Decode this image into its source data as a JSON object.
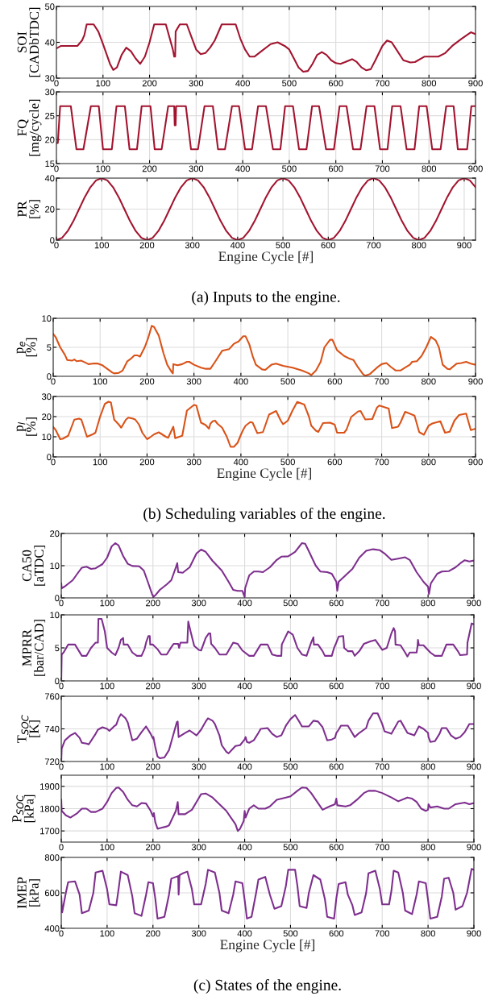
{
  "chart_data": [
    {
      "type": "line",
      "ylabel": "SOI\n[CADbTDC]",
      "xlim": [
        0,
        900
      ],
      "ylim": [
        30,
        50
      ],
      "xticks": [
        0,
        100,
        200,
        300,
        400,
        500,
        600,
        700,
        800,
        900
      ],
      "yticks": [
        30,
        40,
        50
      ],
      "grid": true,
      "x": [
        0,
        10,
        30,
        45,
        55,
        60,
        65,
        80,
        90,
        100,
        115,
        122,
        130,
        140,
        150,
        160,
        170,
        180,
        190,
        200,
        210,
        235,
        250,
        253,
        255,
        256,
        265,
        280,
        290,
        300,
        310,
        320,
        330,
        340,
        355,
        385,
        395,
        405,
        415,
        425,
        440,
        460,
        475,
        490,
        500,
        510,
        520,
        530,
        540,
        550,
        560,
        570,
        580,
        590,
        600,
        610,
        620,
        635,
        645,
        655,
        665,
        675,
        685,
        700,
        710,
        720,
        730,
        745,
        760,
        770,
        790,
        820,
        835,
        850,
        870,
        890,
        900
      ],
      "series": [
        {
          "color": "#a2142f",
          "values": [
            38.3,
            39,
            39,
            39,
            40.5,
            42,
            45,
            45,
            43,
            39.5,
            34,
            32.3,
            33,
            36.5,
            38.5,
            37.5,
            35.5,
            34,
            36,
            40,
            45,
            45,
            38,
            36,
            36,
            43,
            45,
            45,
            41.5,
            38,
            36.7,
            37,
            38.5,
            40.5,
            45,
            45,
            41,
            38,
            36,
            36,
            37.5,
            39.5,
            40,
            39,
            38,
            35.5,
            33,
            31.8,
            32,
            34,
            36.5,
            37.3,
            36.5,
            35,
            34.2,
            34,
            34.5,
            35.3,
            34.5,
            33,
            32.2,
            32.5,
            35,
            39,
            40.5,
            40,
            38,
            35,
            34.4,
            34.5,
            36,
            36,
            37,
            39,
            41,
            42.8,
            42.3
          ]
        }
      ]
    },
    {
      "type": "line",
      "ylabel": "FQ\n[mg/cycle]",
      "xlim": [
        0,
        900
      ],
      "ylim": [
        15,
        30
      ],
      "xticks": [
        0,
        100,
        200,
        300,
        400,
        500,
        600,
        700,
        800,
        900
      ],
      "yticks": [
        15,
        20,
        25,
        30
      ],
      "grid": true,
      "x": [
        0,
        3,
        8,
        31,
        43,
        58,
        74,
        91,
        100,
        119,
        129,
        147,
        157,
        173,
        183,
        202,
        211,
        226,
        240,
        253,
        254,
        256,
        257,
        261,
        278,
        289,
        304,
        318,
        336,
        347,
        362,
        377,
        392,
        405,
        420,
        433,
        450,
        465,
        481,
        491,
        508,
        521,
        537,
        549,
        564,
        579,
        596,
        608,
        623,
        637,
        653,
        666,
        683,
        695,
        711,
        721,
        739,
        752,
        769,
        779,
        795,
        807,
        825,
        837,
        853,
        862,
        882,
        891,
        900
      ],
      "series": [
        {
          "color": "#a2142f",
          "values": [
            19.3,
            19.3,
            27,
            27,
            18,
            18,
            27,
            27,
            18,
            18,
            27,
            27,
            18,
            18,
            27,
            27,
            18,
            18,
            27,
            27,
            23,
            23,
            27,
            27,
            27,
            18,
            18,
            27,
            27,
            18,
            18,
            27,
            27,
            18,
            18,
            27,
            27,
            18,
            18,
            27,
            27,
            18,
            18,
            27,
            27,
            18,
            18,
            27,
            27,
            18,
            18,
            27,
            27,
            18,
            18,
            27,
            27,
            18,
            18,
            27,
            27,
            18,
            18,
            27,
            27,
            18,
            18,
            27,
            27
          ]
        }
      ]
    },
    {
      "type": "line",
      "ylabel": "PR\n[%]",
      "xlabel": "Engine Cycle [#]",
      "annotations": [
        "(a) Inputs to the engine."
      ],
      "xlim": [
        0,
        925
      ],
      "ylim": [
        0,
        40
      ],
      "xticks": [
        0,
        100,
        200,
        300,
        400,
        500,
        600,
        700,
        800,
        900
      ],
      "yticks": [
        0,
        20,
        40
      ],
      "grid": true,
      "x": [
        0,
        12.5,
        25,
        37.5,
        50,
        62.5,
        75,
        87.5,
        100,
        112.5,
        125,
        137.5,
        150,
        162.5,
        175,
        187.5,
        200,
        212.5,
        225,
        237.5,
        250,
        262.5,
        275,
        287.5,
        300,
        312.5,
        325,
        337.5,
        350,
        362.5,
        375,
        387.5,
        400,
        412.5,
        425,
        437.5,
        450,
        462.5,
        475,
        487.5,
        500,
        512.5,
        525,
        537.5,
        550,
        562.5,
        575,
        587.5,
        600,
        612.5,
        625,
        637.5,
        650,
        662.5,
        675,
        687.5,
        700,
        712.5,
        725,
        737.5,
        750,
        762.5,
        775,
        787.5,
        800,
        812.5,
        825,
        837.5,
        850,
        862.5,
        875,
        887.5,
        900,
        912.5,
        925
      ],
      "series": [
        {
          "color": "#a2142f",
          "values": [
            0,
            1.5,
            5.9,
            12.3,
            20,
            27.7,
            34.1,
            38.5,
            40,
            38.5,
            34.1,
            27.7,
            20,
            12.3,
            5.9,
            1.5,
            0,
            1.5,
            5.9,
            12.3,
            20,
            27.7,
            34.1,
            38.5,
            40,
            38.5,
            34.1,
            27.7,
            20,
            12.3,
            5.9,
            1.5,
            0,
            1.5,
            5.9,
            12.3,
            20,
            27.7,
            34.1,
            38.5,
            40,
            38.5,
            34.1,
            27.7,
            20,
            12.3,
            5.9,
            1.5,
            0,
            1.5,
            5.9,
            12.3,
            20,
            27.7,
            34.1,
            38.5,
            40,
            38.5,
            34.1,
            27.7,
            20,
            12.3,
            5.9,
            1.5,
            0,
            1.5,
            5.9,
            12.3,
            20,
            27.7,
            34.1,
            38.5,
            40,
            38.5,
            34.1
          ]
        }
      ]
    },
    {
      "type": "line",
      "ylabel": "p$_{e}$\n[%]",
      "xlim": [
        0,
        900
      ],
      "ylim": [
        0,
        10
      ],
      "xticks": [
        0,
        100,
        200,
        300,
        400,
        500,
        600,
        700,
        800,
        900
      ],
      "yticks": [
        0,
        5,
        10
      ],
      "grid": true,
      "x": [
        0,
        5,
        15,
        25,
        30,
        40,
        45,
        50,
        60,
        70,
        75,
        85,
        95,
        105,
        115,
        125,
        130,
        140,
        148,
        158,
        165,
        173,
        180,
        185,
        195,
        202,
        210,
        215,
        225,
        235,
        243,
        252,
        255,
        256,
        265,
        275,
        285,
        290,
        300,
        315,
        325,
        335,
        345,
        360,
        375,
        385,
        395,
        405,
        410,
        418,
        425,
        432,
        445,
        452,
        465,
        475,
        490,
        510,
        530,
        545,
        550,
        560,
        570,
        578,
        590,
        595,
        605,
        620,
        630,
        640,
        650,
        660,
        665,
        675,
        690,
        700,
        710,
        720,
        730,
        740,
        750,
        760,
        765,
        775,
        785,
        795,
        805,
        815,
        822,
        830,
        840,
        845,
        860,
        870,
        880,
        890,
        900
      ],
      "series": [
        {
          "color": "#d95319",
          "values": [
            7.3,
            6.8,
            5,
            3.7,
            2.8,
            2.7,
            2.9,
            2.6,
            2.7,
            2.3,
            2.1,
            2.2,
            2.2,
            1.9,
            1.3,
            0.7,
            0.5,
            0.6,
            1.0,
            2.6,
            3.0,
            3.6,
            3.6,
            3.4,
            5.0,
            6.5,
            8.7,
            8.5,
            7.0,
            4.0,
            2.0,
            0.8,
            0.5,
            2.1,
            1.9,
            2.1,
            2.5,
            2.5,
            2.0,
            1.5,
            1.3,
            1.3,
            2.5,
            4.4,
            4.7,
            5.6,
            6.0,
            6.9,
            6.9,
            5.5,
            3.5,
            2.0,
            1.2,
            1.1,
            2.0,
            2.2,
            1.8,
            1.5,
            1.0,
            0.5,
            0.2,
            1.0,
            2.5,
            5.0,
            6.3,
            6.3,
            4.5,
            3.5,
            3.1,
            2.8,
            1.5,
            0.4,
            0.1,
            0.4,
            1.5,
            2.1,
            2.3,
            1.6,
            1.0,
            1.0,
            1.5,
            2.0,
            2.5,
            2.6,
            3.5,
            5.0,
            6.8,
            6.2,
            5.0,
            2.0,
            1.3,
            1.2,
            2.2,
            2.3,
            2.5,
            2.2,
            2.0
          ]
        }
      ]
    },
    {
      "type": "line",
      "ylabel": "p$_{l}$\n[%]",
      "xlabel": "Engine Cycle [#]",
      "annotations": [
        "(b) Scheduling variables of the engine."
      ],
      "xlim": [
        0,
        900
      ],
      "ylim": [
        0,
        30
      ],
      "xticks": [
        0,
        100,
        200,
        300,
        400,
        500,
        600,
        700,
        800,
        900
      ],
      "yticks": [
        0,
        10,
        20,
        30
      ],
      "grid": true,
      "x": [
        0,
        5,
        15,
        20,
        32,
        45,
        55,
        60,
        72,
        85,
        90,
        100,
        110,
        118,
        123,
        130,
        140,
        145,
        155,
        160,
        170,
        175,
        183,
        190,
        200,
        205,
        215,
        225,
        230,
        240,
        245,
        250,
        256,
        260,
        275,
        285,
        300,
        305,
        315,
        325,
        332,
        335,
        340,
        345,
        350,
        360,
        370,
        378,
        385,
        393,
        400,
        405,
        410,
        420,
        425,
        435,
        447,
        460,
        475,
        485,
        490,
        500,
        510,
        520,
        535,
        545,
        550,
        560,
        565,
        575,
        590,
        600,
        605,
        620,
        625,
        635,
        650,
        655,
        665,
        680,
        690,
        695,
        715,
        722,
        735,
        740,
        750,
        770,
        780,
        790,
        800,
        808,
        825,
        835,
        845,
        855,
        865,
        880,
        890,
        900
      ],
      "series": [
        {
          "color": "#d95319",
          "values": [
            14.8,
            13.5,
            8.8,
            9.0,
            10.5,
            18.5,
            19,
            18.5,
            10,
            11.3,
            12,
            20,
            26.3,
            27.4,
            27,
            18.5,
            16,
            14.5,
            18.5,
            19.5,
            19,
            18.5,
            16,
            12,
            8.8,
            9.5,
            11.2,
            12.2,
            11.5,
            10,
            9.5,
            12,
            15,
            9.3,
            10.5,
            23,
            25.8,
            25.5,
            17,
            15.8,
            14,
            16.5,
            17.7,
            18,
            16.5,
            14.5,
            10,
            5,
            5,
            7,
            11,
            13.5,
            15.5,
            17.3,
            17,
            11.8,
            12.3,
            21,
            22.8,
            18,
            16.2,
            18,
            23,
            27.3,
            26,
            20,
            15.5,
            13,
            12.4,
            16.8,
            17,
            16,
            12,
            12,
            13.5,
            19.8,
            22.6,
            22.8,
            18.6,
            18.8,
            24.5,
            25.5,
            24,
            14.3,
            15,
            17,
            22.4,
            20.5,
            12.3,
            11,
            15.5,
            16.6,
            17.7,
            12,
            12.5,
            18,
            20.8,
            21.5,
            13.3,
            14
          ]
        }
      ]
    },
    {
      "type": "line",
      "ylabel": "CA50\n[aTDC]",
      "xlim": [
        0,
        900
      ],
      "ylim": [
        0,
        20
      ],
      "xticks": [
        0,
        100,
        200,
        300,
        400,
        500,
        600,
        700,
        800,
        900
      ],
      "yticks": [
        0,
        10,
        20
      ],
      "grid": true,
      "x": [
        0,
        1,
        10,
        25,
        35,
        45,
        55,
        65,
        75,
        90,
        100,
        110,
        118,
        125,
        135,
        145,
        155,
        170,
        180,
        190,
        198,
        201,
        205,
        215,
        230,
        240,
        250,
        253,
        255,
        265,
        280,
        295,
        305,
        315,
        330,
        350,
        365,
        375,
        385,
        395,
        398,
        400,
        401,
        410,
        420,
        430,
        440,
        455,
        470,
        480,
        495,
        510,
        525,
        532,
        540,
        555,
        565,
        580,
        590,
        600,
        602,
        605,
        620,
        635,
        650,
        665,
        680,
        695,
        705,
        720,
        735,
        750,
        760,
        775,
        790,
        800,
        802,
        806,
        820,
        830,
        845,
        860,
        870,
        880,
        890,
        900
      ],
      "series": [
        {
          "color": "#7e2f8e",
          "values": [
            4.5,
            3,
            3.8,
            5.5,
            7.5,
            9.4,
            9.7,
            9,
            9.2,
            10.5,
            12.5,
            16,
            17,
            16.3,
            13,
            10.6,
            9.9,
            9.8,
            8.5,
            4.5,
            1.2,
            0.3,
            0.8,
            2.5,
            4.2,
            5.5,
            9.5,
            10.8,
            8,
            7.8,
            9.5,
            13.8,
            15,
            14.3,
            11.5,
            8.5,
            5,
            2.5,
            2.2,
            2.2,
            1,
            0.3,
            3,
            7,
            8.2,
            8.2,
            8,
            9.5,
            11.8,
            12.8,
            12.9,
            14.3,
            17,
            16.8,
            14.5,
            10,
            8.2,
            8,
            7.5,
            5,
            2.2,
            5,
            7,
            9,
            12.5,
            14.6,
            15.1,
            14.8,
            13.8,
            11.8,
            12.2,
            12.6,
            11.8,
            8,
            5,
            3.5,
            1.2,
            4.5,
            7.5,
            8.2,
            8.3,
            9.5,
            10.7,
            11.7,
            11.3,
            11.6
          ]
        }
      ]
    },
    {
      "type": "line",
      "ylabel": "MPRR\n[bar/CAD]",
      "xlim": [
        0,
        900
      ],
      "ylim": [
        0,
        10
      ],
      "xticks": [
        0,
        100,
        200,
        300,
        400,
        500,
        600,
        700,
        800,
        900
      ],
      "yticks": [
        0,
        5,
        10
      ],
      "grid": true,
      "x": [
        0,
        1,
        5,
        15,
        30,
        45,
        55,
        65,
        75,
        80,
        81,
        88,
        95,
        100,
        110,
        118,
        125,
        130,
        135,
        136,
        145,
        155,
        165,
        175,
        182,
        185,
        190,
        193,
        194,
        200,
        210,
        218,
        230,
        240,
        245,
        255,
        257,
        260,
        275,
        277,
        282,
        290,
        300,
        305,
        315,
        322,
        325,
        327,
        335,
        345,
        360,
        375,
        385,
        395,
        410,
        420,
        435,
        450,
        460,
        470,
        480,
        481,
        495,
        505,
        515,
        525,
        535,
        545,
        550,
        551,
        560,
        570,
        575,
        590,
        595,
        600,
        605,
        615,
        617,
        625,
        635,
        640,
        650,
        660,
        675,
        685,
        700,
        710,
        720,
        725,
        728,
        729,
        740,
        750,
        755,
        760,
        775,
        777,
        778,
        780,
        790,
        805,
        815,
        830,
        840,
        855,
        865,
        870,
        885,
        886,
        895,
        900
      ],
      "series": [
        {
          "color": "#7e2f8e",
          "values": [
            0,
            4,
            4.3,
            5.5,
            5.5,
            3.8,
            3.8,
            5,
            5.8,
            5.8,
            9.4,
            9.4,
            7.5,
            5,
            4.3,
            3.9,
            5,
            6.2,
            6.5,
            5.5,
            5.5,
            4.3,
            3.8,
            3.8,
            4.9,
            5.8,
            6.8,
            6.8,
            5.5,
            5.5,
            4.8,
            4.0,
            4.0,
            5.1,
            5.6,
            5.6,
            5.0,
            5.8,
            5.8,
            9.0,
            7.5,
            5.3,
            4.7,
            4.6,
            6.5,
            7.2,
            7.2,
            5.6,
            5.0,
            4.0,
            4.0,
            5.8,
            5.6,
            4.6,
            3.8,
            3.8,
            5.5,
            5.5,
            4.0,
            3.8,
            3.8,
            5.5,
            7.5,
            7.0,
            5.0,
            4.0,
            3.8,
            5.8,
            6.6,
            5.5,
            5.5,
            4.5,
            3.8,
            3.8,
            5.0,
            5.8,
            6.7,
            6.8,
            5.0,
            4.5,
            4.5,
            3.8,
            4.5,
            5.6,
            6.0,
            6.2,
            4.7,
            5.0,
            7.2,
            8.0,
            7.5,
            5.5,
            5.4,
            4.3,
            3.7,
            4.3,
            4.3,
            5.2,
            6.2,
            5.4,
            5.4,
            4.3,
            3.8,
            3.8,
            5.5,
            5.5,
            4.5,
            3.9,
            4.0,
            5.8,
            8.7,
            8.6
          ]
        }
      ]
    },
    {
      "type": "line",
      "ylabel": "T$_{SOC}$\n[K]",
      "xlim": [
        0,
        900
      ],
      "ylim": [
        720,
        760
      ],
      "xticks": [
        0,
        100,
        200,
        300,
        400,
        500,
        600,
        700,
        800,
        900
      ],
      "yticks": [
        720,
        740,
        760
      ],
      "grid": true,
      "x": [
        0,
        1,
        8,
        20,
        30,
        40,
        45,
        55,
        60,
        75,
        80,
        90,
        100,
        105,
        115,
        120,
        125,
        130,
        140,
        145,
        155,
        165,
        175,
        185,
        195,
        200,
        201,
        205,
        210,
        215,
        225,
        235,
        245,
        252,
        254,
        256,
        270,
        280,
        295,
        305,
        315,
        320,
        330,
        335,
        345,
        350,
        360,
        365,
        375,
        380,
        390,
        400,
        402,
        405,
        410,
        420,
        430,
        435,
        450,
        460,
        470,
        480,
        490,
        500,
        510,
        520,
        525,
        540,
        550,
        560,
        570,
        580,
        590,
        597,
        600,
        605,
        610,
        625,
        640,
        650,
        665,
        670,
        680,
        690,
        700,
        705,
        720,
        735,
        740,
        755,
        770,
        780,
        790,
        800,
        801,
        805,
        815,
        825,
        830,
        840,
        850,
        860,
        870,
        880,
        890,
        900
      ],
      "series": [
        {
          "color": "#7e2f8e",
          "values": [
            720,
            728,
            733,
            736,
            737.5,
            734.5,
            731.5,
            731,
            730.5,
            737,
            739.5,
            741,
            740,
            738.8,
            741.5,
            742.5,
            746.5,
            749,
            746.5,
            744,
            733,
            734,
            738,
            741.5,
            737,
            734,
            735,
            729,
            723,
            722,
            722.5,
            727,
            737,
            744,
            744.5,
            735,
            737.5,
            739,
            736,
            739.5,
            744.5,
            746.5,
            745,
            743,
            736,
            730,
            726,
            725,
            728,
            729.5,
            730,
            733.5,
            735,
            732,
            731.5,
            733,
            737.5,
            740,
            740.5,
            737,
            735,
            736,
            742,
            746,
            748.5,
            744,
            741.5,
            741.5,
            745,
            744.5,
            741,
            733,
            733.5,
            734.5,
            737.5,
            739.5,
            742,
            742,
            735,
            737.5,
            740.5,
            745,
            749.5,
            749.5,
            743,
            738.5,
            737,
            744.5,
            745,
            737.5,
            736,
            741.5,
            740,
            737.5,
            735,
            732,
            732.5,
            737,
            740.5,
            740.5,
            736,
            734,
            735,
            738,
            743,
            743
          ]
        }
      ]
    },
    {
      "type": "line",
      "ylabel": "P$_{SOC}$\n[kPa]",
      "xlim": [
        0,
        900
      ],
      "ylim": [
        1650,
        1950
      ],
      "xticks": [
        0,
        100,
        200,
        300,
        400,
        500,
        600,
        700,
        800,
        900
      ],
      "yticks": [
        1700,
        1800,
        1900
      ],
      "grid": true,
      "x": [
        0,
        1,
        10,
        20,
        35,
        45,
        55,
        65,
        75,
        90,
        100,
        110,
        120,
        125,
        135,
        145,
        155,
        165,
        175,
        185,
        195,
        200,
        202,
        205,
        210,
        220,
        230,
        235,
        250,
        254,
        256,
        270,
        285,
        295,
        305,
        315,
        330,
        345,
        360,
        370,
        380,
        385,
        390,
        398,
        400,
        402,
        410,
        420,
        430,
        445,
        455,
        470,
        490,
        500,
        515,
        525,
        535,
        545,
        560,
        570,
        585,
        597,
        600,
        602,
        620,
        630,
        645,
        660,
        670,
        685,
        700,
        720,
        735,
        755,
        765,
        775,
        785,
        795,
        800,
        801,
        805,
        820,
        835,
        845,
        860,
        880,
        890,
        900
      ],
      "series": [
        {
          "color": "#7e2f8e",
          "values": [
            1840,
            1790,
            1770,
            1760,
            1780,
            1800,
            1800,
            1785,
            1785,
            1800,
            1830,
            1870,
            1893,
            1895,
            1875,
            1840,
            1815,
            1810,
            1825,
            1823,
            1790,
            1765,
            1780,
            1740,
            1710,
            1715,
            1720,
            1725,
            1790,
            1830,
            1775,
            1775,
            1795,
            1830,
            1865,
            1868,
            1850,
            1820,
            1790,
            1760,
            1730,
            1700,
            1710,
            1745,
            1790,
            1760,
            1800,
            1815,
            1800,
            1800,
            1810,
            1840,
            1850,
            1855,
            1880,
            1895,
            1893,
            1870,
            1825,
            1795,
            1810,
            1820,
            1845,
            1815,
            1810,
            1815,
            1840,
            1870,
            1880,
            1880,
            1870,
            1850,
            1833,
            1850,
            1845,
            1830,
            1800,
            1790,
            1795,
            1820,
            1805,
            1810,
            1800,
            1800,
            1820,
            1827,
            1820,
            1825
          ]
        }
      ]
    },
    {
      "type": "line",
      "ylabel": "IMEP\n[kPa]",
      "xlabel": "Engine Cycle [#]",
      "annotations": [
        "(c) States of the engine."
      ],
      "xlim": [
        0,
        900
      ],
      "ylim": [
        400,
        800
      ],
      "xticks": [
        0,
        100,
        200,
        300,
        400,
        500,
        600,
        700,
        800,
        900
      ],
      "yticks": [
        400,
        600,
        800
      ],
      "grid": true,
      "x": [
        0,
        2,
        10,
        15,
        30,
        40,
        45,
        60,
        70,
        75,
        90,
        100,
        105,
        120,
        125,
        130,
        145,
        155,
        160,
        175,
        185,
        190,
        200,
        205,
        210,
        225,
        235,
        240,
        255,
        256,
        258,
        265,
        275,
        285,
        290,
        305,
        315,
        320,
        335,
        345,
        350,
        365,
        375,
        380,
        395,
        400,
        405,
        415,
        425,
        430,
        445,
        455,
        465,
        480,
        490,
        495,
        510,
        515,
        520,
        535,
        540,
        550,
        565,
        575,
        580,
        595,
        600,
        605,
        620,
        625,
        635,
        640,
        655,
        665,
        670,
        685,
        695,
        700,
        715,
        720,
        725,
        735,
        745,
        750,
        765,
        775,
        780,
        795,
        800,
        805,
        820,
        830,
        835,
        845,
        855,
        860,
        875,
        885,
        895,
        900
      ],
      "series": [
        {
          "color": "#7e2f8e",
          "values": [
            580,
            490,
            600,
            660,
            665,
            590,
            485,
            500,
            600,
            715,
            725,
            620,
            535,
            530,
            620,
            720,
            700,
            580,
            485,
            470,
            590,
            660,
            655,
            570,
            455,
            465,
            590,
            680,
            695,
            590,
            700,
            710,
            720,
            620,
            535,
            535,
            650,
            730,
            715,
            600,
            500,
            485,
            590,
            665,
            655,
            560,
            455,
            465,
            600,
            675,
            690,
            590,
            510,
            525,
            640,
            730,
            730,
            640,
            525,
            515,
            600,
            700,
            675,
            565,
            465,
            455,
            570,
            650,
            660,
            590,
            530,
            475,
            490,
            600,
            710,
            725,
            620,
            535,
            535,
            610,
            725,
            715,
            600,
            500,
            480,
            590,
            665,
            655,
            560,
            455,
            465,
            580,
            680,
            685,
            600,
            505,
            525,
            600,
            735,
            730
          ]
        }
      ]
    }
  ]
}
